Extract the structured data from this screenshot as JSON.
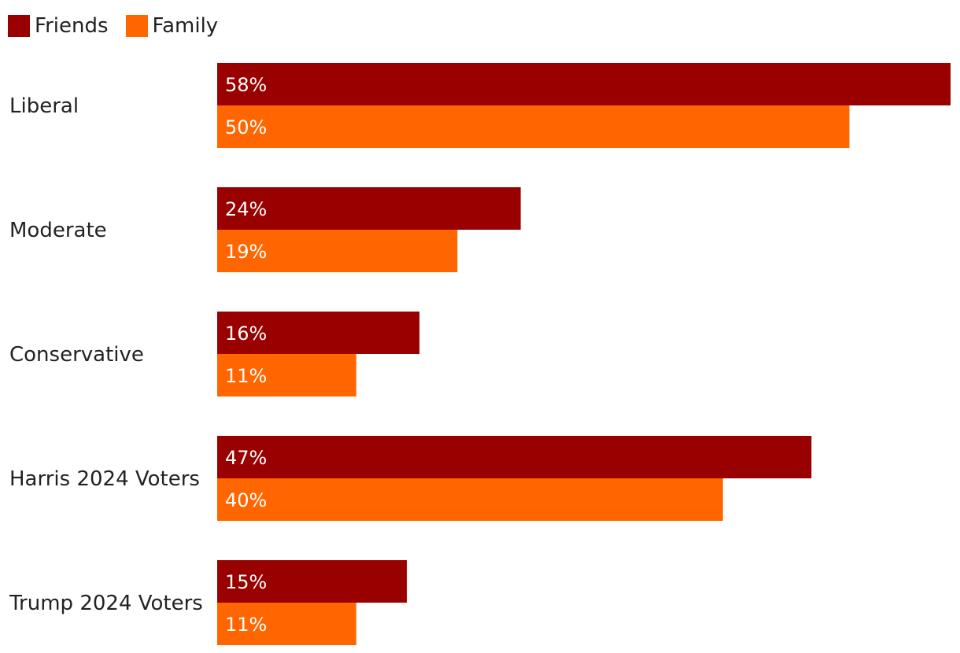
{
  "chart_data": {
    "type": "bar",
    "orientation": "horizontal",
    "categories": [
      "Liberal",
      "Moderate",
      "Conservative",
      "Harris 2024 Voters",
      "Trump 2024 Voters"
    ],
    "series": [
      {
        "name": "Friends",
        "color": "#990000",
        "values": [
          58,
          24,
          16,
          47,
          15
        ],
        "labels": [
          "58%",
          "24%",
          "16%",
          "47%",
          "15%"
        ]
      },
      {
        "name": "Family",
        "color": "#ff6600",
        "values": [
          50,
          19,
          11,
          40,
          11
        ],
        "labels": [
          "50%",
          "19%",
          "11%",
          "40%",
          "11%"
        ]
      }
    ],
    "xlim": [
      0,
      58
    ],
    "legend_position": "top-left",
    "grid": false,
    "title": "",
    "xlabel": "",
    "ylabel": ""
  }
}
